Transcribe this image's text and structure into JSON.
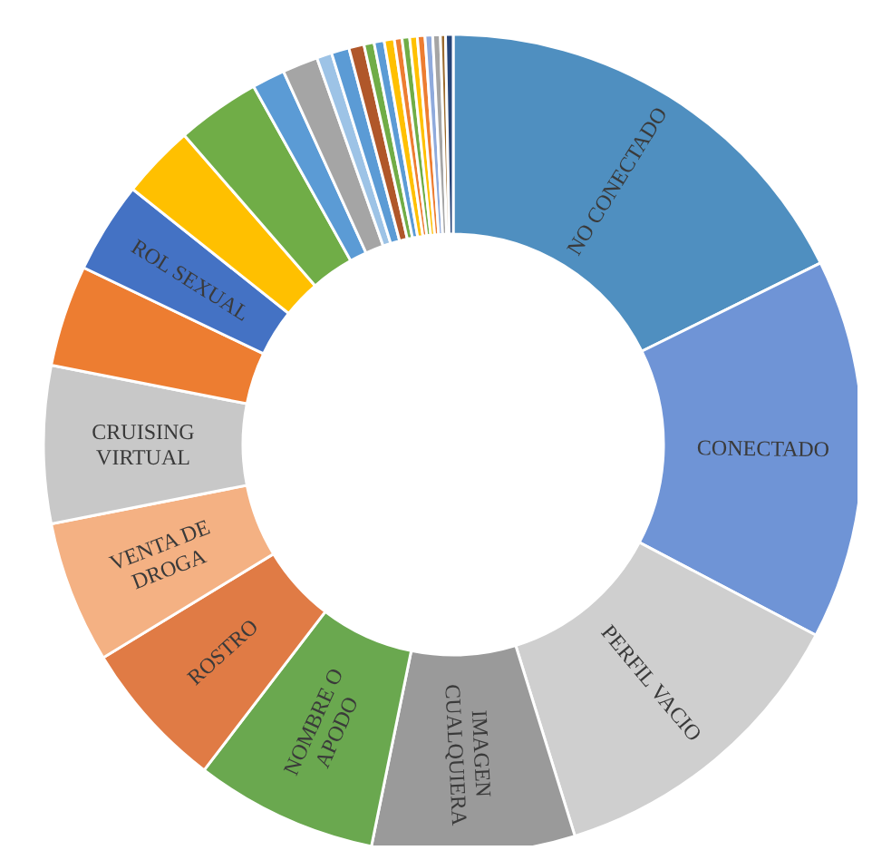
{
  "chart_data": {
    "type": "donut",
    "categories": [
      "NO CONECTADO",
      "CONECTADO",
      "PERFIL VACIO",
      "IMAGEN CUALQUIERA",
      "NOMBRE O APODO",
      "ROSTRO",
      "VENTA DE DROGA",
      "CRUISING VIRTUAL",
      null,
      "ROL SEXUAL",
      null,
      null,
      null,
      null,
      null,
      null,
      null,
      null,
      null,
      null,
      null,
      null,
      null,
      null,
      null,
      null,
      null,
      null
    ],
    "values": [
      17.7,
      15,
      12.5,
      8,
      7.2,
      5.9,
      5.6,
      6.2,
      4,
      3.6,
      2.9,
      3.3,
      1.3,
      1.4,
      0.6,
      0.7,
      0.6,
      0.4,
      0.4,
      0.4,
      0.3,
      0.3,
      0.3,
      0.3,
      0.3,
      0.3,
      0.2,
      0.3
    ],
    "colors": [
      "#4f8fc0",
      "#6f94d6",
      "#cfcfcf",
      "#9a9a9a",
      "#6aa84f",
      "#e07b45",
      "#f4b183",
      "#c8c8c8",
      "#ed7d31",
      "#4472c4",
      "#ffc000",
      "#70ad47",
      "#5b9bd5",
      "#a5a5a5",
      "#9dc3e6",
      "#5b9bd5",
      "#b0572a",
      "#70ad47",
      "#5b9bd5",
      "#ffc000",
      "#ed7d31",
      "#70ad47",
      "#ffc000",
      "#ed7d31",
      "#8faadc",
      "#a5a5a5",
      "#9c6b2f",
      "#264478"
    ]
  }
}
